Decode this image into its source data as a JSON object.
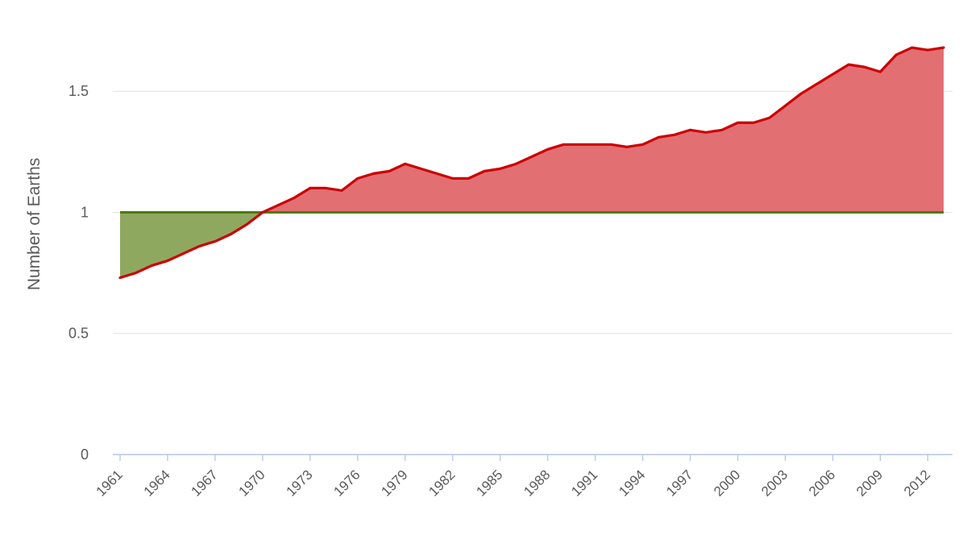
{
  "chart_data": {
    "type": "area",
    "title": "",
    "xlabel": "",
    "ylabel": "Number of Earths",
    "x": [
      1961,
      1962,
      1963,
      1964,
      1965,
      1966,
      1967,
      1968,
      1969,
      1970,
      1971,
      1972,
      1973,
      1974,
      1975,
      1976,
      1977,
      1978,
      1979,
      1980,
      1981,
      1982,
      1983,
      1984,
      1985,
      1986,
      1987,
      1988,
      1989,
      1990,
      1991,
      1992,
      1993,
      1994,
      1995,
      1996,
      1997,
      1998,
      1999,
      2000,
      2001,
      2002,
      2003,
      2004,
      2005,
      2006,
      2007,
      2008,
      2009,
      2010,
      2011,
      2012,
      2013
    ],
    "series": [
      {
        "values": [
          0.73,
          0.75,
          0.78,
          0.8,
          0.83,
          0.86,
          0.88,
          0.91,
          0.95,
          1.0,
          1.03,
          1.06,
          1.1,
          1.1,
          1.09,
          1.14,
          1.16,
          1.17,
          1.2,
          1.18,
          1.16,
          1.14,
          1.14,
          1.17,
          1.18,
          1.2,
          1.23,
          1.26,
          1.28,
          1.28,
          1.28,
          1.28,
          1.27,
          1.28,
          1.31,
          1.32,
          1.34,
          1.33,
          1.34,
          1.37,
          1.37,
          1.39,
          1.44,
          1.49,
          1.53,
          1.57,
          1.61,
          1.6,
          1.58,
          1.65,
          1.68,
          1.67,
          1.68
        ],
        "color": "#cc0000",
        "fill_above_reference": "#e26f72",
        "fill_below_reference": "#8fa860"
      },
      {
        "values": [
          1,
          1,
          1,
          1,
          1,
          1,
          1,
          1,
          1,
          1,
          1,
          1,
          1,
          1,
          1,
          1,
          1,
          1,
          1,
          1,
          1,
          1,
          1,
          1,
          1,
          1,
          1,
          1,
          1,
          1,
          1,
          1,
          1,
          1,
          1,
          1,
          1,
          1,
          1,
          1,
          1,
          1,
          1,
          1,
          1,
          1,
          1,
          1,
          1,
          1,
          1,
          1,
          1
        ],
        "color": "#4d7a10"
      }
    ],
    "ylim": [
      0,
      1.85
    ],
    "yticks": [
      0,
      0.5,
      1,
      1.5
    ],
    "ytick_labels": [
      "0",
      "0.5",
      "1",
      "1.5"
    ],
    "xticks": [
      1961,
      1964,
      1967,
      1970,
      1973,
      1976,
      1979,
      1982,
      1985,
      1988,
      1991,
      1994,
      1997,
      2000,
      2003,
      2006,
      2009,
      2012
    ],
    "xtick_labels": [
      "1961",
      "1964",
      "1967",
      "1970",
      "1973",
      "1976",
      "1979",
      "1982",
      "1985",
      "1988",
      "1991",
      "1994",
      "1997",
      "2000",
      "2003",
      "2006",
      "2009",
      "2012"
    ],
    "grid": true,
    "legend": "none",
    "colors": {
      "grid": "#e3e3e3",
      "axis": "#b7c5e6",
      "text": "#5a5a5a"
    }
  }
}
